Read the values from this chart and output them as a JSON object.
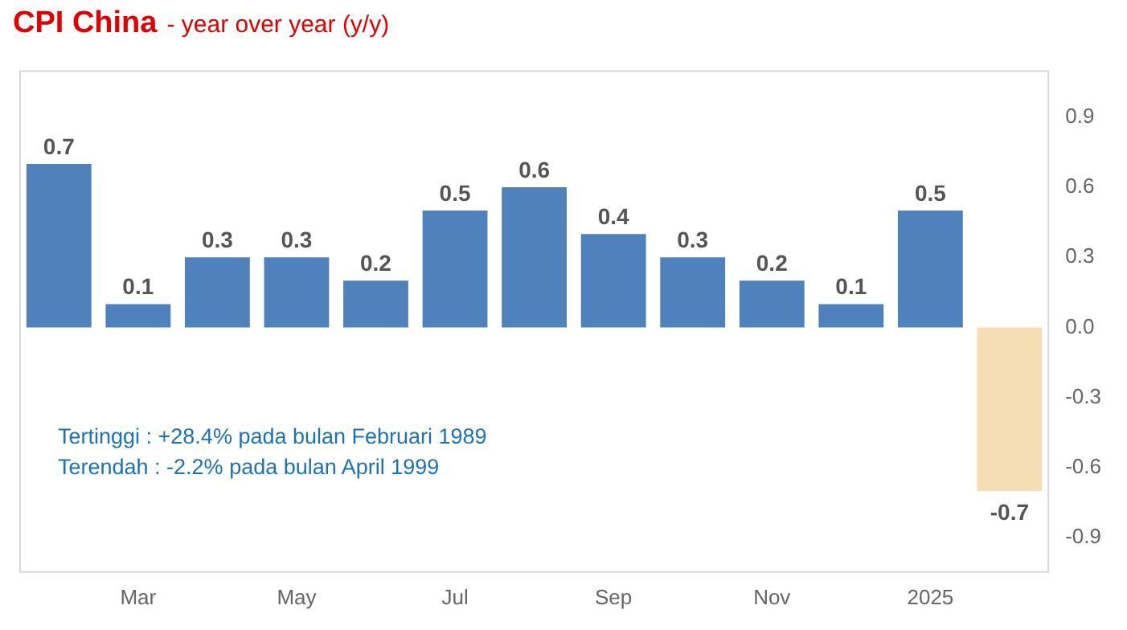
{
  "chart_data": {
    "type": "bar",
    "title": "CPI China",
    "subtitle": "- year over year (y/y)",
    "categories": [
      null,
      "Mar",
      null,
      "May",
      null,
      "Jul",
      null,
      "Sep",
      null,
      "Nov",
      null,
      "2025",
      null
    ],
    "values": [
      0.7,
      0.1,
      0.3,
      0.3,
      0.2,
      0.5,
      0.6,
      0.4,
      0.3,
      0.2,
      0.1,
      0.5,
      -0.7
    ],
    "colors": [
      "#4f81bd",
      "#4f81bd",
      "#4f81bd",
      "#4f81bd",
      "#4f81bd",
      "#4f81bd",
      "#4f81bd",
      "#4f81bd",
      "#4f81bd",
      "#4f81bd",
      "#4f81bd",
      "#4f81bd",
      "#f5deb3"
    ],
    "ylim": [
      -1.05,
      1.1
    ],
    "yticks": [
      -0.9,
      -0.6,
      -0.3,
      {
        "value": 0,
        "label": "0.0"
      },
      0.3,
      0.6,
      0.9
    ],
    "data_labels": true,
    "grid": false,
    "legend": false,
    "annotations": [
      "Tertinggi  : +28.4% pada bulan Februari 1989",
      "Terendah : -2.2% pada bulan April 1999"
    ]
  }
}
